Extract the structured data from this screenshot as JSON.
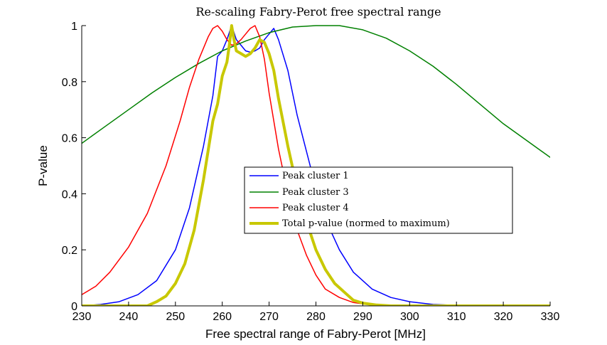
{
  "chart_data": {
    "type": "line",
    "title": "Re-scaling Fabry-Perot free spectral range",
    "xlabel": "Free spectral range of Fabry-Perot [MHz]",
    "ylabel": "P-value",
    "xlim": [
      230,
      330
    ],
    "ylim": [
      0,
      1
    ],
    "xticks": [
      "230",
      "240",
      "250",
      "260",
      "270",
      "280",
      "290",
      "300",
      "310",
      "320",
      "330"
    ],
    "yticks": [
      "0",
      "0.2",
      "0.4",
      "0.6",
      "0.8",
      "1"
    ],
    "grid": false,
    "legend_position": "center-right",
    "series": [
      {
        "name": "Peak cluster 1",
        "color": "#0000ff",
        "line_width": 1.5,
        "x": [
          230,
          234,
          238,
          242,
          246,
          250,
          253,
          256,
          258,
          259,
          260,
          261,
          262,
          263,
          264,
          265,
          266,
          267,
          268,
          269,
          270,
          271,
          272,
          274,
          276,
          278,
          280,
          282,
          285,
          288,
          292,
          296,
          300,
          305,
          310,
          320,
          330
        ],
        "y": [
          0.0,
          0.005,
          0.015,
          0.04,
          0.09,
          0.2,
          0.35,
          0.57,
          0.75,
          0.89,
          0.91,
          0.95,
          1.0,
          0.95,
          0.93,
          0.91,
          0.905,
          0.91,
          0.92,
          0.95,
          0.97,
          0.99,
          0.95,
          0.84,
          0.68,
          0.55,
          0.42,
          0.31,
          0.2,
          0.12,
          0.06,
          0.03,
          0.015,
          0.005,
          0.002,
          0.0,
          0.0
        ]
      },
      {
        "name": "Peak cluster 3",
        "color": "#008000",
        "line_width": 1.5,
        "x": [
          230,
          235,
          240,
          245,
          250,
          255,
          260,
          265,
          270,
          275,
          280,
          285,
          290,
          295,
          300,
          305,
          310,
          315,
          320,
          325,
          330
        ],
        "y": [
          0.58,
          0.64,
          0.7,
          0.76,
          0.815,
          0.865,
          0.91,
          0.945,
          0.975,
          0.995,
          1.0,
          1.0,
          0.985,
          0.955,
          0.91,
          0.855,
          0.79,
          0.72,
          0.65,
          0.59,
          0.53
        ]
      },
      {
        "name": "Peak cluster 4",
        "color": "#ff0000",
        "line_width": 1.5,
        "x": [
          230,
          233,
          236,
          240,
          244,
          248,
          251,
          253,
          255,
          257,
          258,
          259,
          260,
          261,
          262,
          263,
          264,
          265,
          266,
          267,
          268,
          269,
          270,
          272,
          274,
          276,
          278,
          280,
          282,
          285,
          288,
          291,
          295,
          300,
          330
        ],
        "y": [
          0.04,
          0.07,
          0.12,
          0.21,
          0.33,
          0.5,
          0.66,
          0.78,
          0.88,
          0.96,
          0.99,
          1.0,
          0.98,
          0.95,
          0.93,
          0.935,
          0.95,
          0.97,
          0.99,
          1.0,
          0.96,
          0.88,
          0.76,
          0.56,
          0.4,
          0.27,
          0.18,
          0.11,
          0.06,
          0.03,
          0.012,
          0.005,
          0.002,
          0.0,
          0.0
        ]
      },
      {
        "name": "Total p-value (normed to maximum)",
        "color": "#c8c800",
        "line_width": 4,
        "x": [
          230,
          244,
          246,
          248,
          250,
          252,
          254,
          256,
          258,
          259,
          260,
          261,
          261.5,
          262,
          262.5,
          263,
          264,
          265,
          266,
          267,
          268,
          269,
          270,
          271,
          272,
          274,
          276,
          278,
          280,
          282,
          284,
          286,
          288,
          290,
          293,
          296,
          300,
          330
        ],
        "y": [
          0.0,
          0.0,
          0.015,
          0.035,
          0.08,
          0.15,
          0.27,
          0.45,
          0.66,
          0.72,
          0.82,
          0.87,
          0.93,
          1.0,
          0.95,
          0.91,
          0.9,
          0.89,
          0.9,
          0.92,
          0.95,
          0.94,
          0.9,
          0.84,
          0.74,
          0.57,
          0.42,
          0.3,
          0.2,
          0.13,
          0.08,
          0.05,
          0.02,
          0.01,
          0.003,
          0.0,
          0.0,
          0.0
        ]
      }
    ]
  }
}
